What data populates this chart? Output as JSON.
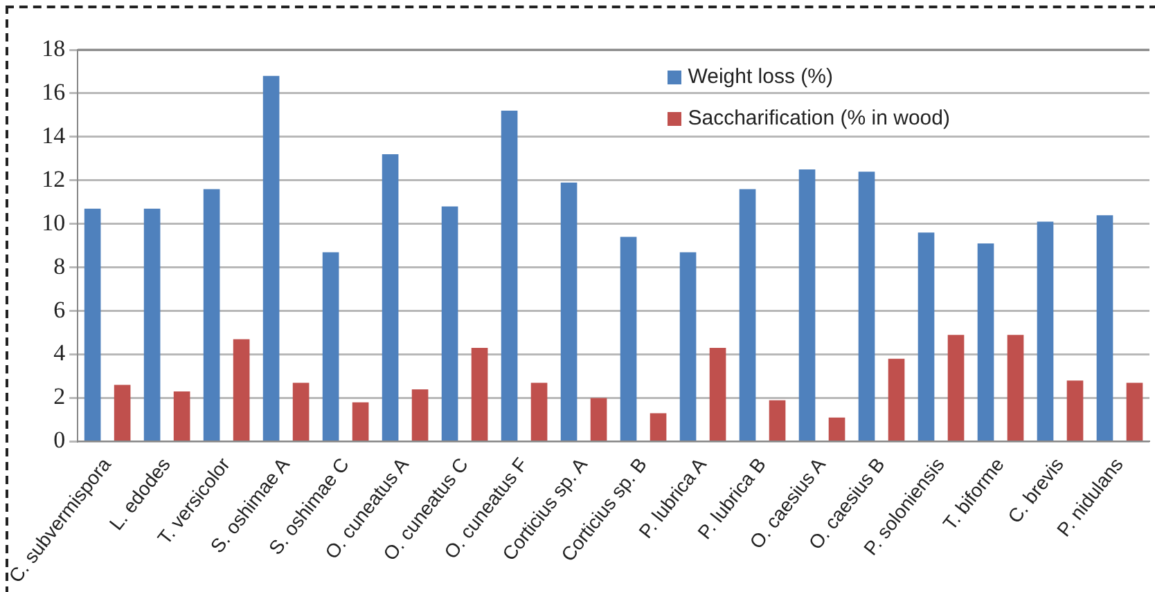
{
  "chart_data": {
    "type": "bar",
    "categories": [
      "C. subvermispora",
      "L. edodes",
      "T. versicolor",
      "S. oshimae A",
      "S. oshimae C",
      "O. cuneatus A",
      "O. cuneatus C",
      "O. cuneatus F",
      "Corticius sp. A",
      "Corticius sp. B",
      "P. lubrica A",
      "P. lubrica B",
      "O. caesius A",
      "O. caesius B",
      "P. soloniensis",
      "T. biforme",
      "C. brevis",
      "P. nidulans"
    ],
    "series": [
      {
        "name": "Weight loss (%)",
        "color": "#4f81bd",
        "values": [
          10.7,
          10.7,
          11.6,
          16.8,
          8.7,
          13.2,
          10.8,
          15.2,
          11.9,
          9.4,
          8.7,
          11.6,
          12.5,
          12.4,
          9.6,
          9.1,
          10.1,
          10.4
        ]
      },
      {
        "name": "Saccharification (% in wood)",
        "color": "#c0504d",
        "values": [
          2.6,
          2.3,
          4.7,
          2.7,
          1.8,
          2.4,
          4.3,
          2.7,
          2.0,
          1.3,
          4.3,
          1.9,
          1.1,
          3.8,
          4.9,
          4.9,
          2.8,
          2.7
        ]
      }
    ],
    "ylim": [
      0,
      18
    ],
    "yticks": [
      0,
      2,
      4,
      6,
      8,
      10,
      12,
      14,
      16,
      18
    ],
    "grid": "y",
    "legend": "top right"
  }
}
